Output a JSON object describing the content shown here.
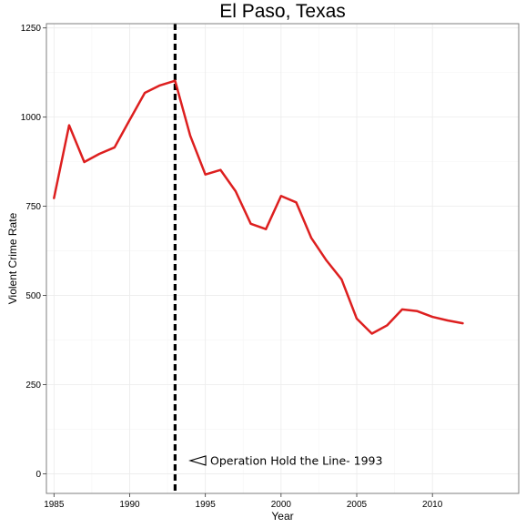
{
  "chart_data": {
    "type": "line",
    "title": "El Paso, Texas",
    "xlabel": "Year",
    "ylabel": "Violent Crime Rate",
    "xlim": [
      1984.5,
      2015.7
    ],
    "ylim": [
      -55,
      1262
    ],
    "x_ticks": [
      1985,
      1990,
      1995,
      2000,
      2005,
      2010
    ],
    "y_ticks": [
      0,
      250,
      500,
      750,
      1000,
      1250
    ],
    "grid": true,
    "series": [
      {
        "color": "#dd1f1f",
        "x": [
          1985,
          1986,
          1987,
          1988,
          1989,
          1990,
          1991,
          1992,
          1993,
          1994,
          1995,
          1996,
          1997,
          1998,
          1999,
          2000,
          2001,
          2002,
          2003,
          2004,
          2005,
          2006,
          2007,
          2008,
          2009,
          2010,
          2011,
          2012
        ],
        "y": [
          773,
          977,
          874,
          897,
          915,
          992,
          1068,
          1089,
          1102,
          948,
          839,
          852,
          792,
          701,
          686,
          779,
          761,
          661,
          598,
          545,
          435,
          393,
          416,
          461,
          456,
          440,
          430,
          422
        ]
      }
    ],
    "vline": {
      "x": 1993,
      "style": "dashed",
      "color": "#000000"
    },
    "annotation": {
      "text": "Operation Hold the Line- 1993",
      "x": 1994,
      "y": 37
    }
  }
}
